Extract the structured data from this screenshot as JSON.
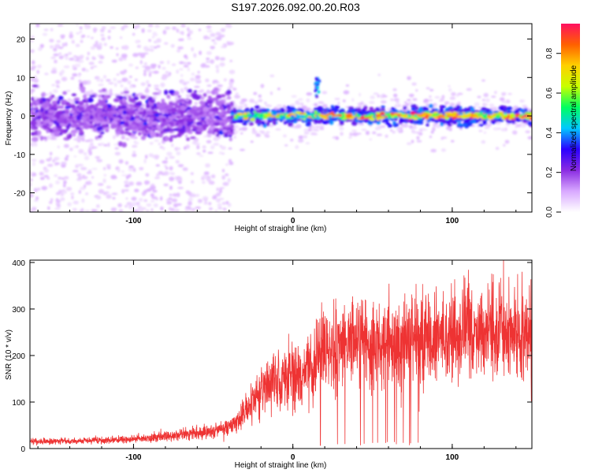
{
  "title": "S197.2026.092.00.20.R03",
  "chart_data": [
    {
      "type": "heatmap",
      "title": "",
      "xlabel": "Height of straight line (km)",
      "ylabel": "Frequency (Hz)",
      "xlim": [
        -165,
        150
      ],
      "ylim": [
        -25,
        24
      ],
      "xticks": [
        -100,
        0,
        100
      ],
      "yticks": [
        -20,
        -10,
        0,
        10,
        20
      ],
      "colorbar": {
        "label": "Normalized spectral amplitude",
        "range": [
          0,
          0.95
        ],
        "ticks": [
          0.0,
          0.2,
          0.4,
          0.6,
          0.8
        ],
        "colors": [
          "#ffffff",
          "#d8a8ff",
          "#8a2be2",
          "#2a00ff",
          "#00c8ff",
          "#00ff60",
          "#c8ff00",
          "#ffd000",
          "#ff6000",
          "#ff1060"
        ]
      },
      "description_regions": [
        {
          "x_range": [
            -165,
            -38
          ],
          "pattern": "wide scatter, central band 0 to ±5 Hz, amplitude ~0.15–0.35"
        },
        {
          "x_range": [
            -38,
            150
          ],
          "pattern": "narrow band near 0 Hz, peaks up to ~0.95"
        },
        {
          "x_range": [
            15,
            16
          ],
          "pattern": "isolated patch near 8 Hz, amplitude ~0.4"
        }
      ]
    },
    {
      "type": "line",
      "title": "",
      "xlabel": "Height of straight line (km)",
      "ylabel": "SNR (10 * v/v)",
      "xlim": [
        -165,
        150
      ],
      "ylim": [
        0,
        405
      ],
      "xticks": [
        -100,
        0,
        100
      ],
      "yticks": [
        0,
        100,
        200,
        300,
        400
      ],
      "series": [
        {
          "name": "SNR",
          "color": "#ee3333",
          "x": [
            -165,
            -150,
            -135,
            -120,
            -105,
            -90,
            -75,
            -60,
            -50,
            -42,
            -38,
            -33,
            -28,
            -23,
            -18,
            -13,
            -8,
            -3,
            0,
            5,
            10,
            14,
            18,
            22,
            26,
            30,
            35,
            40,
            45,
            50,
            55,
            60,
            65,
            70,
            75,
            80,
            85,
            90,
            95,
            100,
            105,
            110,
            115,
            120,
            125,
            130,
            135,
            140,
            145,
            150
          ],
          "values": [
            15,
            16,
            16,
            18,
            19,
            22,
            28,
            33,
            38,
            44,
            50,
            65,
            88,
            110,
            130,
            145,
            148,
            152,
            155,
            160,
            170,
            180,
            205,
            210,
            215,
            220,
            225,
            228,
            228,
            230,
            232,
            230,
            235,
            228,
            232,
            230,
            235,
            238,
            240,
            245,
            248,
            250,
            252,
            255,
            258,
            250,
            245,
            240,
            238,
            240
          ]
        }
      ]
    }
  ]
}
